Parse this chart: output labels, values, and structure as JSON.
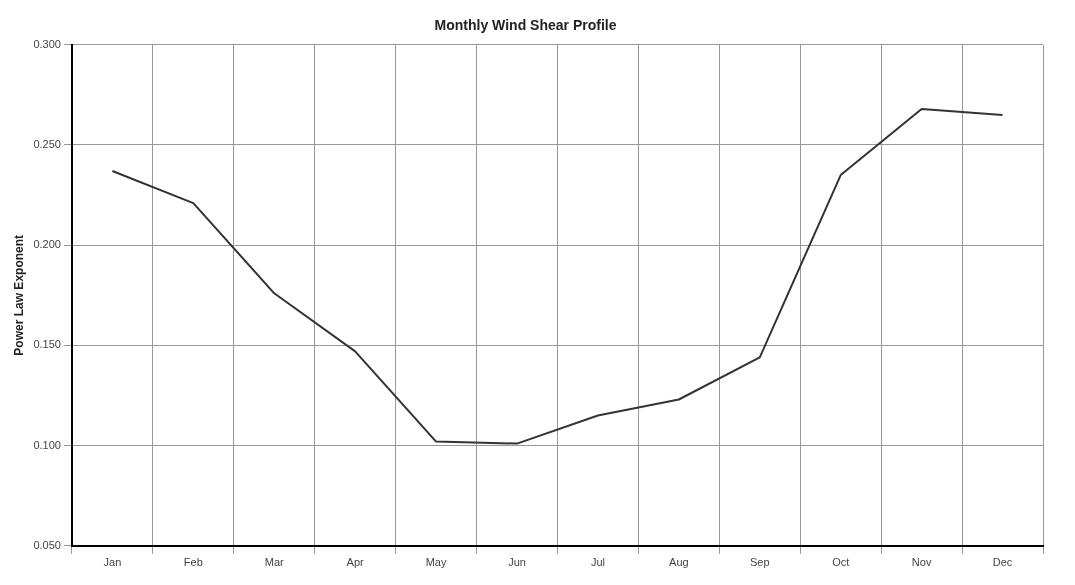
{
  "chart_data": {
    "type": "line",
    "title": "Monthly Wind Shear Profile",
    "ylabel": "Power Law Exponent",
    "categories": [
      "Jan",
      "Feb",
      "Mar",
      "Apr",
      "May",
      "Jun",
      "Jul",
      "Aug",
      "Sep",
      "Oct",
      "Nov",
      "Dec"
    ],
    "series": [
      {
        "color": "#333333",
        "values": [
          0.237,
          0.221,
          0.176,
          0.147,
          0.102,
          0.101,
          0.115,
          0.123,
          0.144,
          0.235,
          0.268,
          0.265
        ]
      }
    ],
    "ylim": [
      0.05,
      0.3
    ],
    "yticks": [
      {
        "value": 0.05,
        "label": "0.050"
      },
      {
        "value": 0.1,
        "label": "0.100"
      },
      {
        "value": 0.15,
        "label": "0.150"
      },
      {
        "value": 0.2,
        "label": "0.200"
      },
      {
        "value": 0.25,
        "label": "0.250"
      },
      {
        "value": 0.3,
        "label": "0.300"
      }
    ],
    "grid": true,
    "legend": false,
    "marker": "none",
    "line_style": "solid"
  }
}
